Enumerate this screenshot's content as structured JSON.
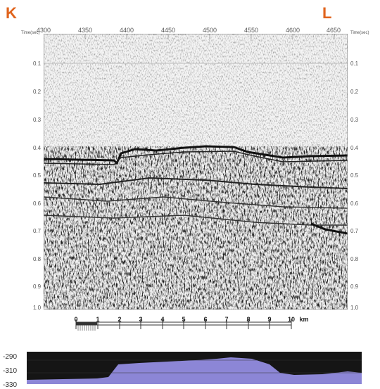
{
  "profile": {
    "start_label": "K",
    "end_label": "L",
    "cdp_labels": [
      "4300",
      "4350",
      "4400",
      "4450",
      "4500",
      "4550",
      "4600",
      "4650"
    ],
    "time_axis_title_left": "Time(sec)",
    "time_axis_title_right": "Time(sec)",
    "time_labels": [
      "0.1",
      "0.2",
      "0.3",
      "0.4",
      "0.5",
      "0.6",
      "0.7",
      "0.8",
      "0.9",
      "1.0"
    ]
  },
  "scale_bar": {
    "labels": [
      "0",
      "1",
      "2",
      "3",
      "4",
      "5",
      "6",
      "7",
      "8",
      "9",
      "10"
    ],
    "unit": "km"
  },
  "elevation": {
    "labels": [
      "-290",
      "-310",
      "-330"
    ],
    "fill_color": "#8c86d6",
    "background_color": "#151515"
  }
}
